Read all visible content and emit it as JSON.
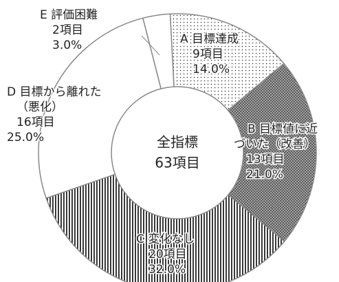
{
  "chart_data": {
    "type": "donut",
    "center_label": [
      "全指標",
      "63項目"
    ],
    "series": [
      {
        "names": [
          [
            "A 目標達成"
          ],
          [
            "B 目標値に近",
            "づいた（改善）"
          ],
          [
            "C 変化なし"
          ],
          [
            "D 目標から離れた",
            "（悪化）"
          ],
          [
            "E 評価困難"
          ]
        ],
        "count_labels": [
          "9項目",
          "13項目",
          "20項目",
          "16項目",
          "2項目"
        ],
        "values": [
          14,
          21,
          32,
          25,
          3
        ],
        "value_labels": [
          "14.0%",
          "21.0%",
          "32.0%",
          "25.0%",
          "3.0%"
        ],
        "patterns": [
          "dots",
          "crosshatch",
          "vertical",
          "none",
          "none"
        ]
      }
    ]
  }
}
